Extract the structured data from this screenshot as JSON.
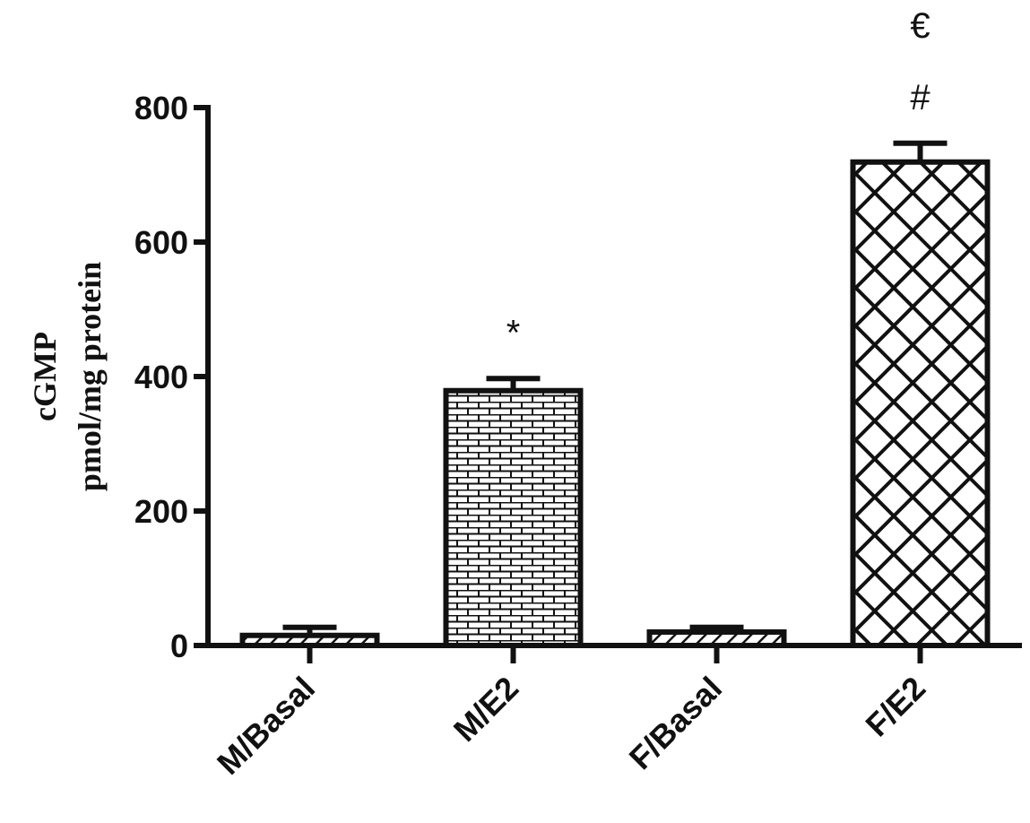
{
  "chart_data": {
    "type": "bar",
    "ylabel": [
      "cGMP",
      "pmol/mg protein"
    ],
    "categories": [
      "M/Basal",
      "M/E2",
      "F/Basal",
      "F/E2"
    ],
    "values": [
      15,
      379,
      20,
      719
    ],
    "errors": [
      12,
      18,
      7,
      28
    ],
    "annotations": [
      [],
      [
        "*"
      ],
      [],
      [
        "#",
        "€"
      ]
    ],
    "patterns": [
      "diagonal",
      "brick",
      "diagonal",
      "crosshatch"
    ],
    "color": "#111111",
    "ylim": [
      0,
      800
    ],
    "yticks": [
      0,
      200,
      400,
      600,
      800
    ]
  }
}
